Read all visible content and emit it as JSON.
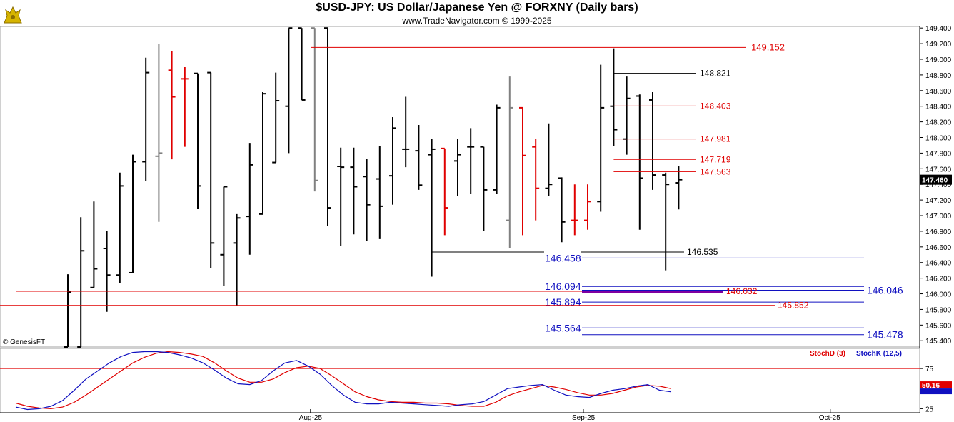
{
  "header": {
    "title": "$USD-JPY:  US Dollar/Japanese Yen @ FORXNY  (Daily bars)",
    "subtitle": "www.TradeNavigator.com © 1999-2025",
    "copyright": "© GenesisFT"
  },
  "colors": {
    "up_bar": "#000000",
    "down_bar": "#e00000",
    "neutral_bar": "#808080",
    "red_level": "#e00000",
    "black_level": "#000000",
    "blue_level": "#1010c0",
    "purple_level": "#8000a0",
    "stoch_d": "#e00000",
    "stoch_k": "#1010c0"
  },
  "chart_data": [
    {
      "type": "ohlc",
      "title": "$USD-JPY:  US Dollar/Japanese Yen @ FORXNY  (Daily bars)",
      "xlabel": "",
      "ylabel": "",
      "ylim": [
        145.32,
        149.42
      ],
      "yticks": [
        "149.400",
        "149.200",
        "149.000",
        "148.800",
        "148.600",
        "148.400",
        "148.200",
        "148.000",
        "147.800",
        "147.600",
        "147.400",
        "147.200",
        "147.000",
        "146.800",
        "146.600",
        "146.400",
        "146.200",
        "146.000",
        "145.800",
        "145.600",
        "145.400"
      ],
      "x_labels": [
        {
          "label": "Aug-25",
          "index": 19
        },
        {
          "label": "Sep-25",
          "index": 40
        },
        {
          "label": "Oct-25",
          "index": 59
        }
      ],
      "last_price_label": "147.460",
      "bars": [
        {
          "i": 0,
          "o": 145.32,
          "h": 146.25,
          "l": 145.32,
          "c": 146.02,
          "color": "up"
        },
        {
          "i": 1,
          "o": 145.32,
          "h": 146.98,
          "l": 145.32,
          "c": 146.55,
          "color": "up"
        },
        {
          "i": 2,
          "o": 146.08,
          "h": 147.18,
          "l": 146.08,
          "c": 146.32,
          "color": "up"
        },
        {
          "i": 3,
          "o": 146.58,
          "h": 146.8,
          "l": 145.77,
          "c": 146.24,
          "color": "up"
        },
        {
          "i": 4,
          "o": 146.24,
          "h": 147.55,
          "l": 146.14,
          "c": 147.38,
          "color": "up"
        },
        {
          "i": 5,
          "o": 146.27,
          "h": 147.78,
          "l": 146.27,
          "c": 147.69,
          "color": "up"
        },
        {
          "i": 6,
          "o": 147.69,
          "h": 149.02,
          "l": 147.44,
          "c": 148.83,
          "color": "up"
        },
        {
          "i": 7,
          "o": 147.76,
          "h": 149.2,
          "l": 146.92,
          "c": 147.8,
          "color": "neutral"
        },
        {
          "i": 8,
          "o": 148.86,
          "h": 149.1,
          "l": 147.72,
          "c": 148.52,
          "color": "down"
        },
        {
          "i": 9,
          "o": 148.75,
          "h": 148.9,
          "l": 147.88,
          "c": 148.75,
          "color": "down"
        },
        {
          "i": 10,
          "o": 148.82,
          "h": 148.82,
          "l": 147.09,
          "c": 147.38,
          "color": "up"
        },
        {
          "i": 11,
          "o": 148.83,
          "h": 148.83,
          "l": 146.33,
          "c": 146.65,
          "color": "up"
        },
        {
          "i": 12,
          "o": 146.5,
          "h": 147.37,
          "l": 146.1,
          "c": 147.37,
          "color": "up"
        },
        {
          "i": 13,
          "o": 146.65,
          "h": 147.02,
          "l": 145.85,
          "c": 146.97,
          "color": "up"
        },
        {
          "i": 14,
          "o": 146.99,
          "h": 147.93,
          "l": 146.5,
          "c": 147.65,
          "color": "up"
        },
        {
          "i": 15,
          "o": 147.02,
          "h": 148.58,
          "l": 147.02,
          "c": 148.56,
          "color": "up"
        },
        {
          "i": 16,
          "o": 147.68,
          "h": 148.83,
          "l": 147.68,
          "c": 148.47,
          "color": "up"
        },
        {
          "i": 17,
          "o": 148.4,
          "h": 149.4,
          "l": 147.8,
          "c": 149.4,
          "color": "up"
        },
        {
          "i": 18,
          "o": 149.4,
          "h": 149.4,
          "l": 148.48,
          "c": 148.48,
          "color": "up"
        },
        {
          "i": 19,
          "o": 149.4,
          "h": 149.4,
          "l": 147.31,
          "c": 147.45,
          "color": "neutral"
        },
        {
          "i": 20,
          "o": 149.4,
          "h": 149.4,
          "l": 146.87,
          "c": 147.1,
          "color": "up"
        },
        {
          "i": 21,
          "o": 147.63,
          "h": 147.87,
          "l": 146.61,
          "c": 147.62,
          "color": "up"
        },
        {
          "i": 22,
          "o": 147.62,
          "h": 147.87,
          "l": 146.76,
          "c": 147.37,
          "color": "up"
        },
        {
          "i": 23,
          "o": 147.5,
          "h": 147.73,
          "l": 146.68,
          "c": 147.14,
          "color": "up"
        },
        {
          "i": 24,
          "o": 147.47,
          "h": 147.89,
          "l": 146.7,
          "c": 147.12,
          "color": "up"
        },
        {
          "i": 25,
          "o": 147.51,
          "h": 148.26,
          "l": 147.14,
          "c": 148.12,
          "color": "up"
        },
        {
          "i": 26,
          "o": 147.85,
          "h": 148.52,
          "l": 147.62,
          "c": 147.85,
          "color": "up"
        },
        {
          "i": 27,
          "o": 147.83,
          "h": 148.16,
          "l": 147.33,
          "c": 147.39,
          "color": "up"
        },
        {
          "i": 28,
          "o": 147.78,
          "h": 147.98,
          "l": 146.22,
          "c": 147.85,
          "color": "up"
        },
        {
          "i": 29,
          "o": 147.86,
          "h": 147.86,
          "l": 146.75,
          "c": 147.1,
          "color": "down"
        },
        {
          "i": 30,
          "o": 147.7,
          "h": 147.98,
          "l": 147.25,
          "c": 147.78,
          "color": "up"
        },
        {
          "i": 31,
          "o": 147.88,
          "h": 148.12,
          "l": 147.28,
          "c": 147.88,
          "color": "up"
        },
        {
          "i": 32,
          "o": 147.88,
          "h": 147.88,
          "l": 146.8,
          "c": 147.33,
          "color": "up"
        },
        {
          "i": 33,
          "o": 147.33,
          "h": 148.42,
          "l": 147.28,
          "c": 148.38,
          "color": "up"
        },
        {
          "i": 34,
          "o": 146.94,
          "h": 148.78,
          "l": 146.58,
          "c": 148.38,
          "color": "neutral"
        },
        {
          "i": 35,
          "o": 148.38,
          "h": 148.38,
          "l": 146.75,
          "c": 147.77,
          "color": "down"
        },
        {
          "i": 36,
          "o": 147.88,
          "h": 147.98,
          "l": 146.94,
          "c": 147.35,
          "color": "down"
        },
        {
          "i": 37,
          "o": 147.35,
          "h": 148.18,
          "l": 147.25,
          "c": 147.4,
          "color": "up"
        },
        {
          "i": 38,
          "o": 147.48,
          "h": 147.49,
          "l": 146.66,
          "c": 146.92,
          "color": "up"
        },
        {
          "i": 39,
          "o": 146.94,
          "h": 147.4,
          "l": 146.75,
          "c": 146.94,
          "color": "down"
        },
        {
          "i": 40,
          "o": 146.94,
          "h": 147.4,
          "l": 146.82,
          "c": 147.18,
          "color": "down"
        },
        {
          "i": 41,
          "o": 147.18,
          "h": 148.93,
          "l": 147.05,
          "c": 148.38,
          "color": "up"
        },
        {
          "i": 42,
          "o": 148.4,
          "h": 149.14,
          "l": 147.89,
          "c": 148.1,
          "color": "up"
        },
        {
          "i": 43,
          "o": 147.98,
          "h": 148.78,
          "l": 147.78,
          "c": 148.5,
          "color": "up"
        },
        {
          "i": 44,
          "o": 148.53,
          "h": 148.55,
          "l": 146.82,
          "c": 147.48,
          "color": "up"
        },
        {
          "i": 45,
          "o": 148.48,
          "h": 148.58,
          "l": 147.33,
          "c": 147.52,
          "color": "up"
        },
        {
          "i": 46,
          "o": 147.52,
          "h": 147.55,
          "l": 146.3,
          "c": 147.4,
          "color": "up"
        },
        {
          "i": 47,
          "o": 147.42,
          "h": 147.63,
          "l": 147.08,
          "c": 147.46,
          "color": "up"
        }
      ],
      "levels": [
        {
          "price": 149.152,
          "label": "149.152",
          "color": "red",
          "from": 19,
          "label_side": "right",
          "label_pos": "mid"
        },
        {
          "price": 148.821,
          "label": "148.821",
          "color": "black",
          "from": 42,
          "label_pos": "near"
        },
        {
          "price": 148.403,
          "label": "148.403",
          "color": "red",
          "from": 42,
          "label_pos": "near"
        },
        {
          "price": 147.981,
          "label": "147.981",
          "color": "red",
          "from": 42,
          "label_pos": "near"
        },
        {
          "price": 147.719,
          "label": "147.719",
          "color": "red",
          "from": 42,
          "label_pos": "near"
        },
        {
          "price": 147.563,
          "label": "147.563",
          "color": "red",
          "from": 42,
          "label_pos": "near"
        },
        {
          "price": 146.535,
          "label": "146.535",
          "color": "black",
          "from": 28,
          "label_pos": "near2"
        },
        {
          "price": 146.458,
          "label": "146.458",
          "color": "blue",
          "from": 38,
          "label_pos": "blue_left"
        },
        {
          "price": 146.094,
          "label": "146.094",
          "color": "blue",
          "from": 38,
          "label_pos": "blue_left"
        },
        {
          "price": 146.046,
          "label": "146.046",
          "color": "blue",
          "from": 38,
          "label_pos": "blue_right"
        },
        {
          "price": 146.032,
          "label": "146.032",
          "color": "red",
          "from": 0,
          "label_pos": "purple_mid"
        },
        {
          "price": 145.894,
          "label": "145.894",
          "color": "blue",
          "from": 38,
          "label_pos": "blue_left"
        },
        {
          "price": 145.852,
          "label": "145.852",
          "color": "red",
          "from": -2,
          "label_pos": "red_mid2"
        },
        {
          "price": 145.564,
          "label": "145.564",
          "color": "blue",
          "from": 38,
          "label_pos": "blue_left"
        },
        {
          "price": 145.478,
          "label": "145.478",
          "color": "blue",
          "from": 38,
          "label_pos": "blue_right"
        }
      ]
    },
    {
      "type": "line",
      "title": "",
      "ylim": [
        20,
        100
      ],
      "yticks": [
        "75",
        "25"
      ],
      "reference_line": 75,
      "last_value_label": "50.16",
      "series": [
        {
          "name": "StochD (3)",
          "color": "red",
          "values": [
            32,
            28,
            26,
            25,
            27,
            33,
            42,
            52,
            62,
            72,
            82,
            89,
            94,
            96,
            95,
            93,
            90,
            82,
            72,
            63,
            58,
            58,
            62,
            70,
            76,
            78,
            75,
            66,
            56,
            46,
            40,
            36,
            34,
            33,
            33,
            32,
            32,
            31,
            29,
            28,
            28,
            33,
            41,
            46,
            50,
            54,
            52,
            49,
            45,
            42,
            42,
            44,
            48,
            52,
            54,
            53,
            50
          ]
        },
        {
          "name": "StochK (12,5)",
          "color": "blue",
          "values": [
            27,
            24,
            25,
            28,
            35,
            48,
            62,
            72,
            82,
            90,
            95,
            96,
            96,
            95,
            92,
            88,
            82,
            73,
            63,
            56,
            55,
            60,
            72,
            82,
            85,
            78,
            68,
            54,
            42,
            33,
            31,
            31,
            33,
            32,
            31,
            30,
            29,
            28,
            30,
            31,
            34,
            42,
            50,
            52,
            54,
            55,
            48,
            42,
            40,
            39,
            44,
            48,
            50,
            53,
            55,
            48,
            46
          ]
        }
      ]
    }
  ]
}
